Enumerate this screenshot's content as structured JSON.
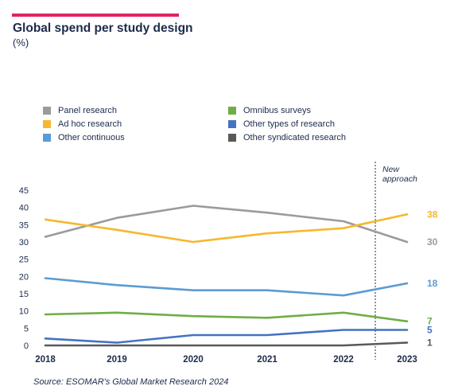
{
  "header": {
    "accent_color": "#e0245e"
  },
  "chart_data": {
    "type": "line",
    "title": "Global spend per study design",
    "subtitle": "(%)",
    "x": [
      "2018",
      "2019",
      "2020",
      "2021",
      "2022",
      "2023"
    ],
    "ylim": [
      0,
      45
    ],
    "yticks": [
      0,
      5,
      10,
      15,
      20,
      25,
      30,
      35,
      40,
      45
    ],
    "grid": false,
    "legend_position": "top",
    "annotation": "New\napproach",
    "series": [
      {
        "name": "Panel research",
        "color": "#9b9b9b",
        "values": [
          31.5,
          37,
          40.5,
          38.5,
          36,
          30
        ],
        "end_label": "30"
      },
      {
        "name": "Ad hoc research",
        "color": "#f5b82e",
        "values": [
          36.5,
          33.5,
          30,
          32.5,
          34,
          38
        ],
        "end_label": "38"
      },
      {
        "name": "Other continuous",
        "color": "#5b9bd5",
        "values": [
          19.5,
          17.5,
          16,
          16,
          14.5,
          18
        ],
        "end_label": "18"
      },
      {
        "name": "Omnibus surveys",
        "color": "#70ad47",
        "values": [
          9,
          9.5,
          8.5,
          8,
          9.5,
          7
        ],
        "end_label": "7"
      },
      {
        "name": "Other types of research",
        "color": "#4472c4",
        "values": [
          2,
          0.8,
          3,
          3,
          4.5,
          4.5
        ],
        "end_label": "5"
      },
      {
        "name": "Other syndicated research",
        "color": "#595959",
        "values": [
          0,
          0,
          0,
          0,
          0,
          0.8
        ],
        "end_label": "1"
      }
    ]
  },
  "footer": {
    "source": "Source: ESOMAR's Global Market Research 2024"
  }
}
